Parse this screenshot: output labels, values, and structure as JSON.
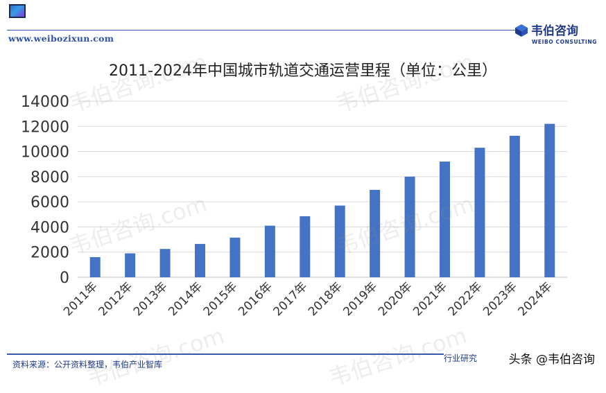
{
  "header": {
    "site_url": "www.weibozixun.com",
    "brand_name": "韦伯咨询",
    "brand_sub": "WEIBO CONSULTING"
  },
  "watermark_text": "韦伯咨询.com",
  "footer": {
    "source": "资料来源：公开资料整理，韦伯产业智库",
    "right_text": "行业研究",
    "toutiao": "头条 @韦伯咨询"
  },
  "colors": {
    "bar": "#4472C4",
    "accent": "#3657b0",
    "grid": "#d9d9d9"
  },
  "chart_data": {
    "type": "bar",
    "title": "2011-2024年中国城市轨道交通运营里程（单位：公里）",
    "categories": [
      "2011年",
      "2012年",
      "2013年",
      "2014年",
      "2015年",
      "2016年",
      "2017年",
      "2018年",
      "2019年",
      "2020年",
      "2021年",
      "2022年",
      "2023年",
      "2024年"
    ],
    "values": [
      1600,
      1900,
      2250,
      2650,
      3150,
      4100,
      4850,
      5700,
      6950,
      8000,
      9200,
      10300,
      11250,
      12200
    ],
    "ylim": [
      0,
      14000
    ],
    "yticks": [
      0,
      2000,
      4000,
      6000,
      8000,
      10000,
      12000,
      14000
    ],
    "grid": true,
    "legend": "none"
  }
}
